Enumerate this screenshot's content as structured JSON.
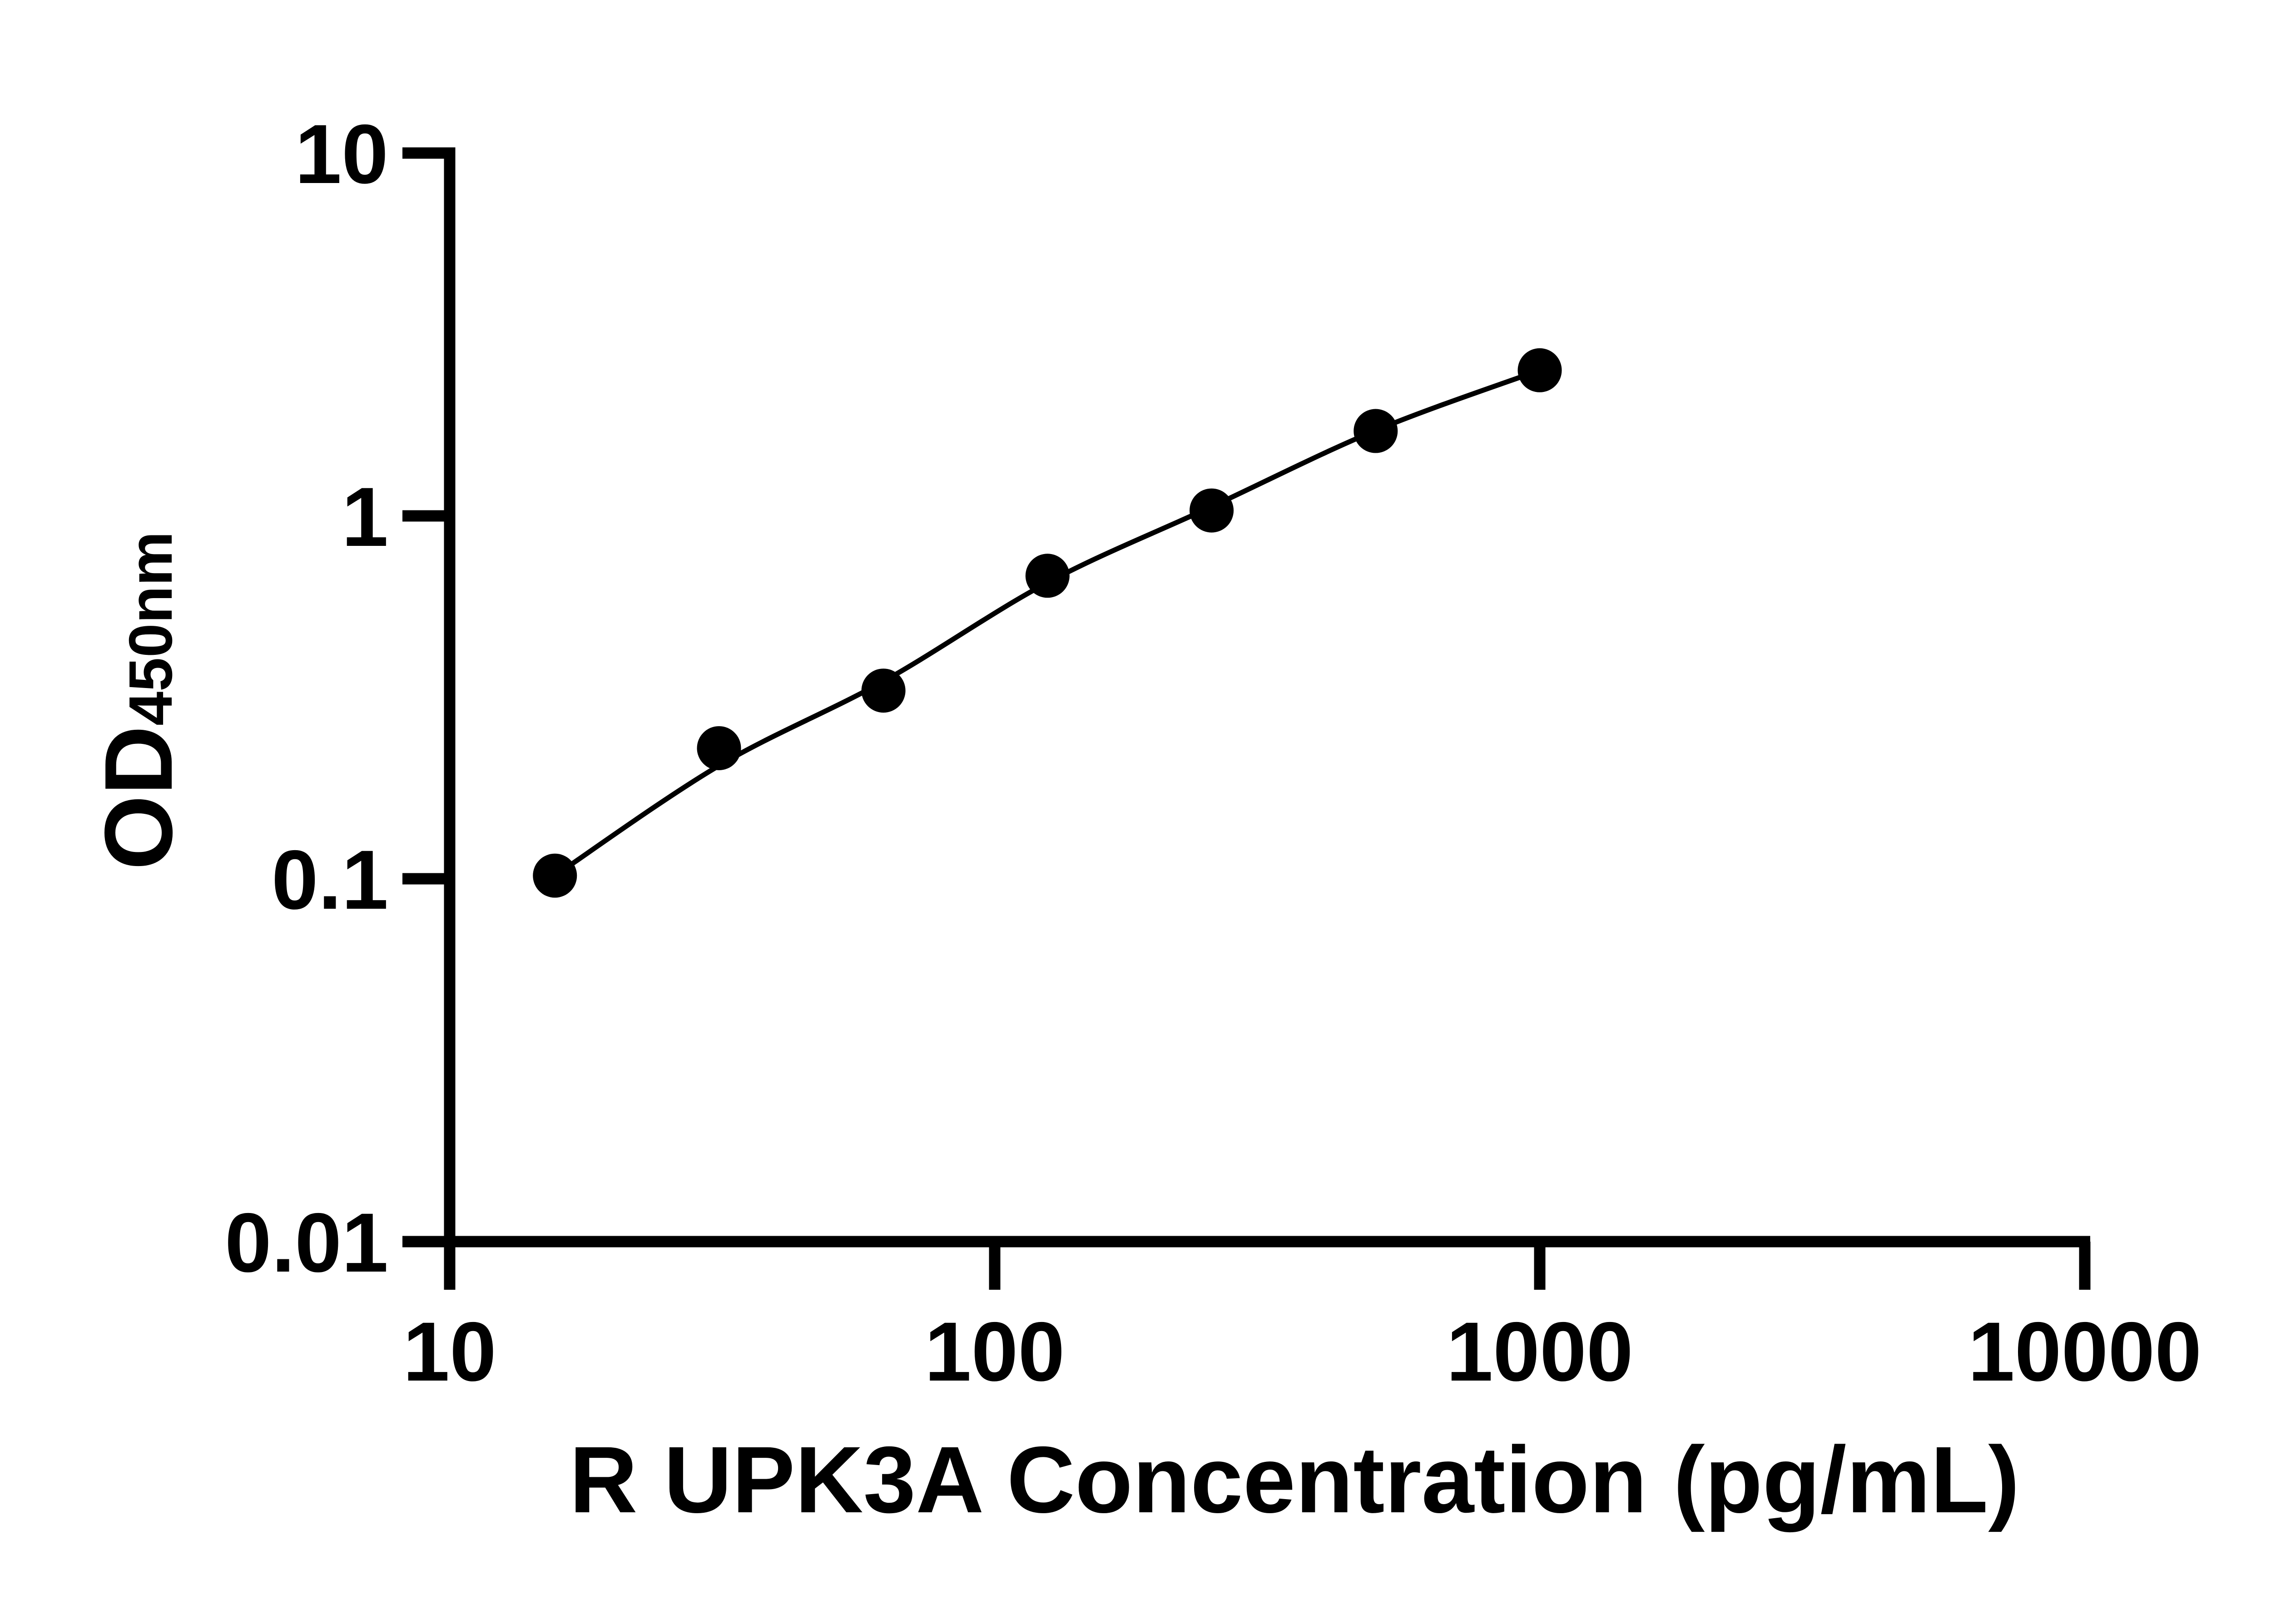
{
  "figure": {
    "background_color": "#ffffff",
    "ink_color": "#000000"
  },
  "chart_data": {
    "type": "scatter",
    "subtype": "log-log standard curve with fitted line",
    "title": "",
    "xlabel": "R UPK3A Concentration (pg/mL)",
    "ylabel": "OD",
    "ylabel_sub": "450nm",
    "xscale": "log",
    "yscale": "log",
    "xlim": [
      10,
      10000
    ],
    "ylim": [
      0.01,
      10
    ],
    "x_ticks": [
      10,
      100,
      1000,
      10000
    ],
    "x_tick_labels": [
      "10",
      "100",
      "1000",
      "10000"
    ],
    "y_ticks": [
      10,
      1,
      0.1,
      0.01
    ],
    "y_tick_labels": [
      "10",
      "1",
      "0.1",
      "0.01"
    ],
    "grid": "off",
    "legend": "none",
    "marker_color": "#000000",
    "line_color": "#000000",
    "points": [
      {
        "x": 15.6,
        "y": 0.102
      },
      {
        "x": 31.2,
        "y": 0.229
      },
      {
        "x": 62.5,
        "y": 0.33
      },
      {
        "x": 125,
        "y": 0.684
      },
      {
        "x": 250,
        "y": 1.035
      },
      {
        "x": 500,
        "y": 1.714
      },
      {
        "x": 1000,
        "y": 2.52
      }
    ],
    "fit_curve": [
      {
        "x": 15.6,
        "y": 0.102
      },
      {
        "x": 31.2,
        "y": 0.205
      },
      {
        "x": 62.5,
        "y": 0.35
      },
      {
        "x": 125,
        "y": 0.655
      },
      {
        "x": 250,
        "y": 1.06
      },
      {
        "x": 500,
        "y": 1.72
      },
      {
        "x": 1000,
        "y": 2.52
      }
    ]
  }
}
